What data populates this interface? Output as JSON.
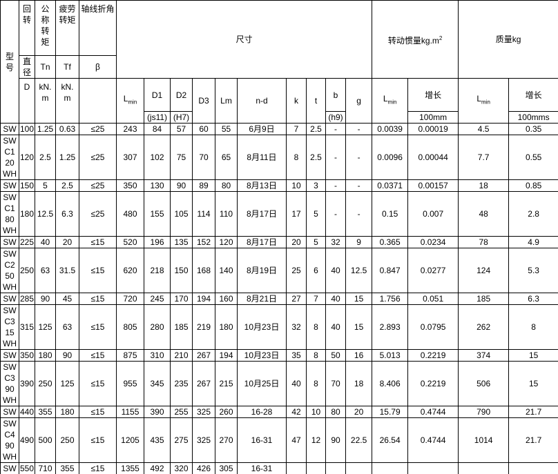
{
  "header": {
    "model": "型号",
    "rotation": "回转",
    "diameter": "直径",
    "D": "D",
    "nominal_torque": "公称转矩",
    "Tn": "Tn",
    "tn_unit": "kN.m",
    "fatigue_torque": "疲劳转矩",
    "Tf": "Tf",
    "tf_unit": "kN.m",
    "angle": "轴线折角",
    "beta": "β",
    "dimensions": "尺寸",
    "lmin_dim": {
      "L": "L",
      "sub": "min"
    },
    "D1": "D1",
    "js11": "(js11)",
    "D2": "D2",
    "H7": "(H7)",
    "D3": "D3",
    "Lm": "Lm",
    "nd": "n-d",
    "k": "k",
    "t": "t",
    "b": "b",
    "h9": "(h9)",
    "g": "g",
    "inertia": "转动惯量kg.m",
    "inertia_sup": "2",
    "lmin_inertia": {
      "L": "L",
      "sub": "min"
    },
    "inertia_growth": "增长",
    "inertia_per": "100mm",
    "mass": "质量kg",
    "lmin_mass": {
      "L": "L",
      "sub": "min"
    },
    "mass_growth": "增长",
    "mass_per": "100mms"
  },
  "table": {
    "rows": [
      [
        "SW",
        "100",
        "1.25",
        "0.63",
        "≤25",
        "243",
        "84",
        "57",
        "60",
        "55",
        "6月9日",
        "7",
        "2.5",
        "-",
        "-",
        "0.0039",
        "0.00019",
        "4.5",
        "0.35"
      ],
      [
        "SWC120WH",
        "120",
        "2.5",
        "1.25",
        "≤25",
        "307",
        "102",
        "75",
        "70",
        "65",
        "8月11日",
        "8",
        "2.5",
        "-",
        "-",
        "0.0096",
        "0.00044",
        "7.7",
        "0.55"
      ],
      [
        "SW",
        "150",
        "5",
        "2.5",
        "≤25",
        "350",
        "130",
        "90",
        "89",
        "80",
        "8月13日",
        "10",
        "3",
        "-",
        "-",
        "0.0371",
        "0.00157",
        "18",
        "0.85"
      ],
      [
        "SWC180WH",
        "180",
        "12.5",
        "6.3",
        "≤25",
        "480",
        "155",
        "105",
        "114",
        "110",
        "8月17日",
        "17",
        "5",
        "-",
        "-",
        "0.15",
        "0.007",
        "48",
        "2.8"
      ],
      [
        "SW",
        "225",
        "40",
        "20",
        "≤15",
        "520",
        "196",
        "135",
        "152",
        "120",
        "8月17日",
        "20",
        "5",
        "32",
        "9",
        "0.365",
        "0.0234",
        "78",
        "4.9"
      ],
      [
        "SWC250WH",
        "250",
        "63",
        "31.5",
        "≤15",
        "620",
        "218",
        "150",
        "168",
        "140",
        "8月19日",
        "25",
        "6",
        "40",
        "12.5",
        "0.847",
        "0.0277",
        "124",
        "5.3"
      ],
      [
        "SW",
        "285",
        "90",
        "45",
        "≤15",
        "720",
        "245",
        "170",
        "194",
        "160",
        "8月21日",
        "27",
        "7",
        "40",
        "15",
        "1.756",
        "0.051",
        "185",
        "6.3"
      ],
      [
        "SWC315WH",
        "315",
        "125",
        "63",
        "≤15",
        "805",
        "280",
        "185",
        "219",
        "180",
        "10月23日",
        "32",
        "8",
        "40",
        "15",
        "2.893",
        "0.0795",
        "262",
        "8"
      ],
      [
        "SW",
        "350",
        "180",
        "90",
        "≤15",
        "875",
        "310",
        "210",
        "267",
        "194",
        "10月23日",
        "35",
        "8",
        "50",
        "16",
        "5.013",
        "0.2219",
        "374",
        "15"
      ],
      [
        "SWC390WH",
        "390",
        "250",
        "125",
        "≤15",
        "955",
        "345",
        "235",
        "267",
        "215",
        "10月25日",
        "40",
        "8",
        "70",
        "18",
        "8.406",
        "0.2219",
        "506",
        "15"
      ],
      [
        "SW",
        "440",
        "355",
        "180",
        "≤15",
        "1155",
        "390",
        "255",
        "325",
        "260",
        "16-28",
        "42",
        "10",
        "80",
        "20",
        "15.79",
        "0.4744",
        "790",
        "21.7"
      ],
      [
        "SWC490WH",
        "490",
        "500",
        "250",
        "≤15",
        "1205",
        "435",
        "275",
        "325",
        "270",
        "16-31",
        "47",
        "12",
        "90",
        "22.5",
        "26.54",
        "0.4744",
        "1014",
        "21.7"
      ],
      [
        "SW",
        "550",
        "710",
        "355",
        "≤15",
        "1355",
        "492",
        "320",
        "426",
        "305",
        "16-31"
      ]
    ]
  }
}
